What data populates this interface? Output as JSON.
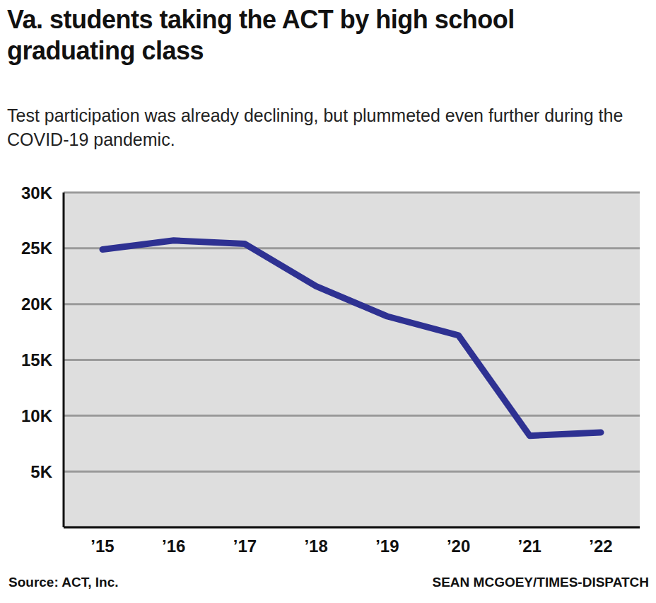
{
  "chart_data": {
    "type": "line",
    "title": "Va. students taking the ACT by high school graduating class",
    "subtitle": "Test participation was already declining, but plummeted even further during the COVID-19 pandemic.",
    "source": "Source: ACT, Inc.",
    "credit": "SEAN MCGOEY/TIMES-DISPATCH",
    "categories": [
      "’15",
      "’16",
      "’17",
      "’18",
      "’19",
      "’20",
      "’21",
      "’22"
    ],
    "values": [
      24900,
      25700,
      25400,
      21600,
      18900,
      17200,
      8200,
      8500
    ],
    "color": "#2e3192",
    "ylim": [
      0,
      30000
    ],
    "yticks": [
      {
        "value": 5000,
        "label": "5K"
      },
      {
        "value": 10000,
        "label": "10K"
      },
      {
        "value": 15000,
        "label": "15K"
      },
      {
        "value": 20000,
        "label": "20K"
      },
      {
        "value": 25000,
        "label": "25K"
      },
      {
        "value": 30000,
        "label": "30K"
      }
    ],
    "grid": true
  }
}
